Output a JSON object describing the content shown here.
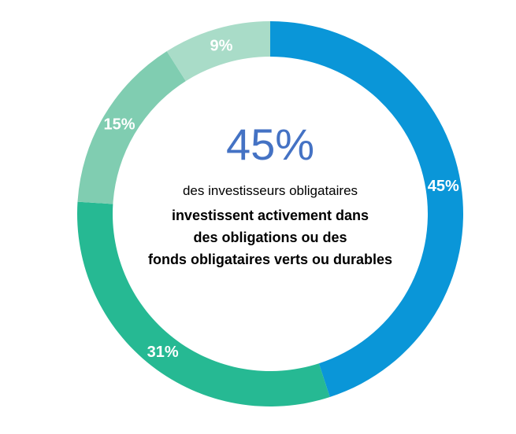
{
  "chart_data": {
    "type": "donut",
    "categories": [
      "45%",
      "31%",
      "15%",
      "9%"
    ],
    "values": [
      45,
      31,
      15,
      9
    ],
    "slice_labels": [
      "45%",
      "31%",
      "15%",
      "9%"
    ],
    "colors": [
      "#0a96d8",
      "#26b993",
      "#80cdb1",
      "#a9dcc8"
    ],
    "start_angle_deg": 0,
    "direction": "clockwise"
  },
  "center": {
    "headline": "45%",
    "line1": "des investisseurs obligataires",
    "line2": "investissent activement dans",
    "line3": "des obligations ou des",
    "line4": "fonds obligataires verts ou durables"
  },
  "colors": {
    "headline": "#4472c4",
    "label_text": "#ffffff",
    "body_text": "#000000"
  }
}
